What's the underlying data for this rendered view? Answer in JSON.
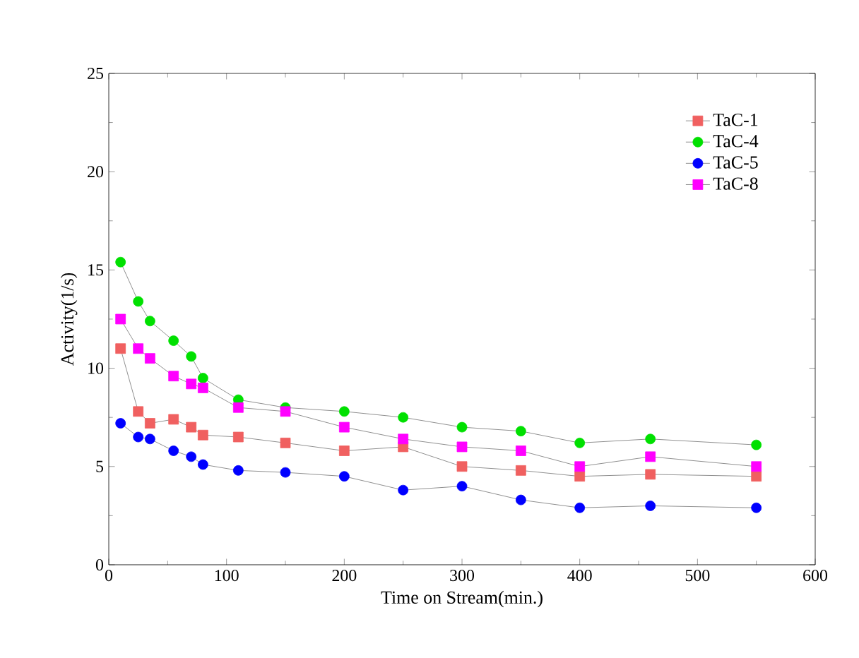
{
  "chart_data": {
    "type": "line",
    "xlabel": "Time on Stream(min.)",
    "ylabel": "Activity(1/s)",
    "x": [
      10,
      25,
      35,
      55,
      70,
      80,
      110,
      150,
      200,
      250,
      300,
      350,
      400,
      460,
      550
    ],
    "series": [
      {
        "name": "TaC-1",
        "color": "#f06060",
        "marker": "square",
        "values": [
          11.0,
          7.8,
          7.2,
          7.4,
          7.0,
          6.6,
          6.5,
          6.2,
          5.8,
          6.0,
          5.0,
          4.8,
          4.5,
          4.6,
          4.5
        ]
      },
      {
        "name": "TaC-4",
        "color": "#00e000",
        "marker": "circle",
        "values": [
          15.4,
          13.4,
          12.4,
          11.4,
          10.6,
          9.5,
          8.4,
          8.0,
          7.8,
          7.5,
          7.0,
          6.8,
          6.2,
          6.4,
          6.1
        ]
      },
      {
        "name": "TaC-5",
        "color": "#0000ff",
        "marker": "circle",
        "values": [
          7.2,
          6.5,
          6.4,
          5.8,
          5.5,
          5.1,
          4.8,
          4.7,
          4.5,
          3.8,
          4.0,
          3.3,
          2.9,
          3.0,
          2.9
        ]
      },
      {
        "name": "TaC-8",
        "color": "#ff00ff",
        "marker": "square",
        "values": [
          12.5,
          11.0,
          10.5,
          9.6,
          9.2,
          9.0,
          8.0,
          7.8,
          7.0,
          6.4,
          6.0,
          5.8,
          5.0,
          5.5,
          5.0
        ]
      }
    ],
    "xlim": [
      0,
      600
    ],
    "ylim": [
      0,
      25
    ],
    "xticks": [
      0,
      100,
      200,
      300,
      400,
      500,
      600
    ],
    "yticks": [
      0,
      5,
      10,
      15,
      20,
      25
    ],
    "grid": false,
    "legend": "top right",
    "line_style": "solid"
  }
}
